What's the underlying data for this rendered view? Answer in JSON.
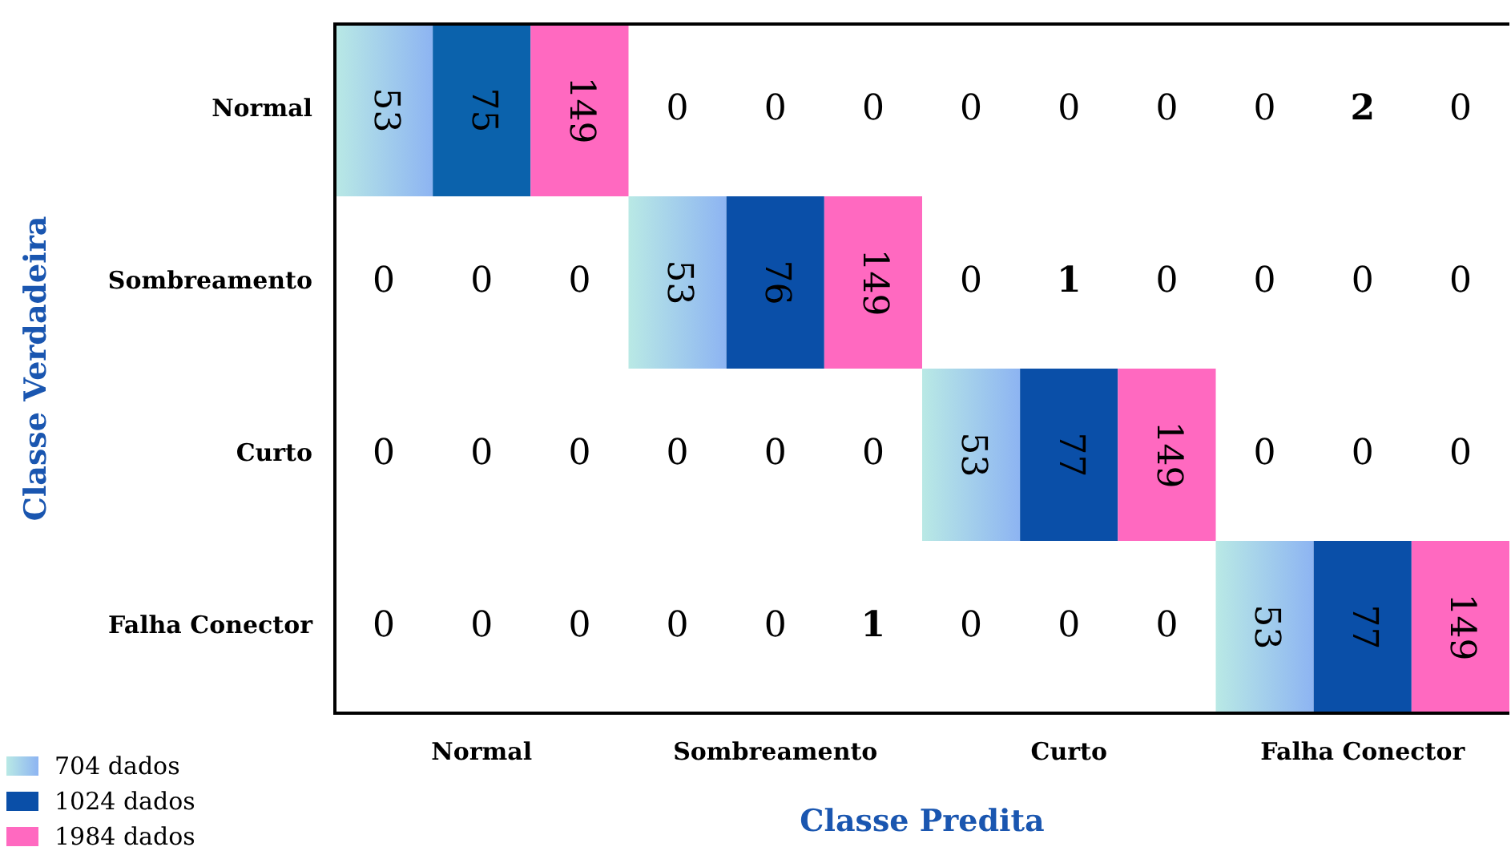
{
  "chart_data": {
    "type": "heatmap",
    "xlabel": "Classe Predita",
    "ylabel": "Classe Verdadeira",
    "categories": [
      null,
      "Normal",
      null,
      null,
      "Sombreamento",
      null,
      null,
      "Curto",
      null,
      null,
      "Falha Conector",
      null
    ],
    "y_categories": [
      "Normal",
      "Sombreamento",
      "Curto",
      "Falha Conector"
    ],
    "legend": "bottom left",
    "data_labels": true,
    "cells": [
      [
        53,
        75,
        149,
        0,
        0,
        0,
        0,
        0,
        0,
        0,
        2,
        0
      ],
      [
        0,
        0,
        0,
        53,
        76,
        149,
        0,
        1,
        0,
        0,
        0,
        0
      ],
      [
        0,
        0,
        0,
        0,
        0,
        0,
        53,
        77,
        149,
        0,
        0,
        0
      ],
      [
        0,
        0,
        0,
        0,
        0,
        1,
        0,
        0,
        0,
        53,
        77,
        149
      ]
    ],
    "colors": [
      [
        "#8db4f2",
        "#0b62ac",
        "#ff69c0",
        null,
        null,
        null,
        null,
        null,
        null,
        null,
        null,
        null
      ],
      [
        null,
        null,
        null,
        "#8db4f2",
        "#0a4fa8",
        "#ff69c0",
        null,
        null,
        null,
        null,
        null,
        null
      ],
      [
        null,
        null,
        null,
        null,
        null,
        null,
        "#8db4f2",
        "#0a4fa8",
        "#ff69c0",
        null,
        null,
        null
      ],
      [
        null,
        null,
        null,
        null,
        null,
        null,
        null,
        null,
        null,
        "#8db4f2",
        "#0a4fa8",
        "#ff69c0"
      ]
    ],
    "series": [
      {
        "name": "704 dados",
        "color": "#8db4f2",
        "values": [
          null,
          null,
          null,
          null,
          null,
          null,
          null,
          null,
          null,
          null,
          null,
          null
        ]
      },
      {
        "name": "1024 dados",
        "color": "#0a4fa8",
        "values": [
          null,
          null,
          null,
          null,
          null,
          null,
          null,
          null,
          null,
          null,
          null,
          null
        ]
      },
      {
        "name": "1984 dados",
        "color": "#ff69c0",
        "values": [
          null,
          null,
          null,
          null,
          null,
          null,
          null,
          null,
          null,
          null,
          null,
          null
        ]
      }
    ]
  }
}
